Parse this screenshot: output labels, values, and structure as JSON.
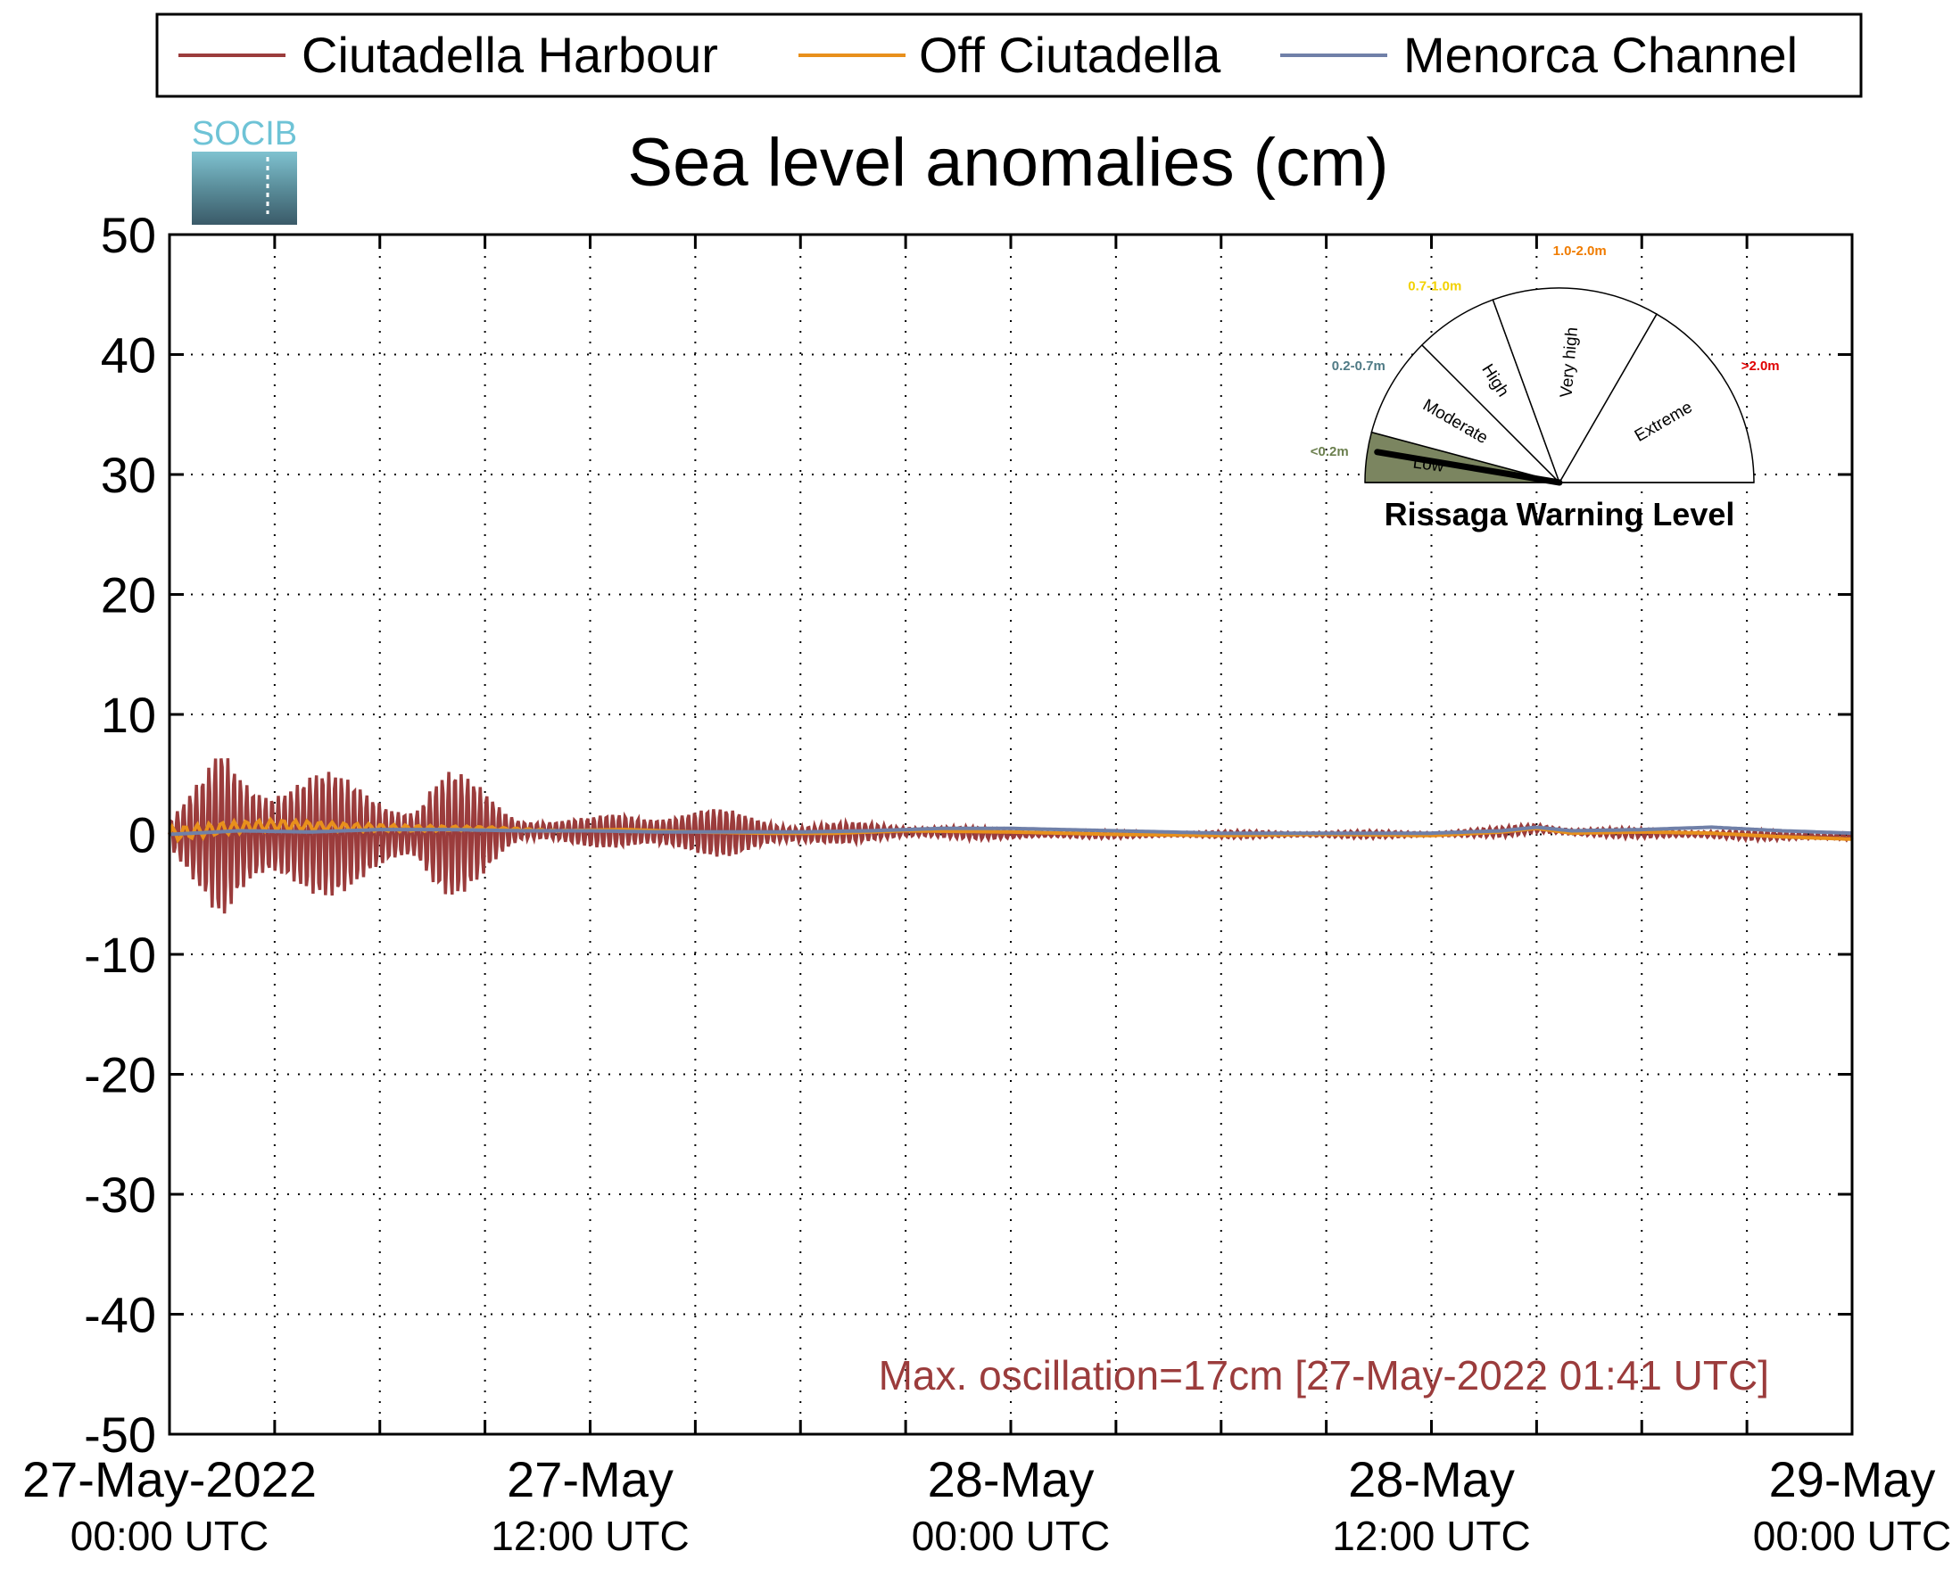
{
  "logo_text": "SOCIB",
  "chart_data": {
    "type": "line",
    "title": "Sea level anomalies (cm)",
    "xlabel": "",
    "ylabel": "",
    "ylim": [
      -50,
      50
    ],
    "yticks": [
      50,
      40,
      30,
      20,
      10,
      0,
      -10,
      -20,
      -30,
      -40,
      -50
    ],
    "ytick_labels": [
      "50",
      "40",
      "30",
      "20",
      "10",
      "0",
      "-10",
      "-20",
      "-30",
      "-40",
      "-50"
    ],
    "xlim_hours": [
      0,
      48
    ],
    "xtick_hours": [
      0,
      3,
      6,
      9,
      12,
      15,
      18,
      21,
      24,
      27,
      30,
      33,
      36,
      39,
      42,
      45,
      48
    ],
    "x_labels": [
      {
        "hour": 0,
        "line1": "27-May-2022",
        "line2": "00:00 UTC"
      },
      {
        "hour": 12,
        "line1": "27-May",
        "line2": "12:00 UTC"
      },
      {
        "hour": 24,
        "line1": "28-May",
        "line2": "00:00 UTC"
      },
      {
        "hour": 36,
        "line1": "28-May",
        "line2": "12:00 UTC"
      },
      {
        "hour": 48,
        "line1": "29-May",
        "line2": "00:00 UTC"
      }
    ],
    "grid": true,
    "legend_position": "top",
    "series": [
      {
        "name": "Ciutadella Harbour",
        "color": "#9b3c3c",
        "hours": [
          0,
          1,
          1.5,
          2,
          3,
          4,
          5,
          6,
          7,
          7.5,
          8,
          9,
          10,
          11,
          12,
          13,
          14,
          15,
          16,
          17,
          18,
          20,
          22,
          24,
          27,
          30,
          33,
          36,
          38,
          39,
          40,
          42,
          44,
          46,
          48
        ],
        "amplitude": [
          1.5,
          5,
          8,
          7,
          6,
          5.5,
          5,
          4.5,
          3,
          5,
          5.5,
          4,
          1.5,
          1,
          1.2,
          1.8,
          2,
          2,
          2,
          1.5,
          1,
          0.8,
          0.6,
          0.4,
          0.3,
          0.3,
          0.3,
          0.3,
          0.4,
          0.5,
          0.4,
          0.4,
          0.4,
          0.4,
          0.4
        ],
        "mean": [
          0,
          0,
          0,
          0,
          0,
          0,
          0,
          0,
          0,
          0,
          0,
          0.2,
          0.3,
          0.3,
          0.2,
          0.3,
          0.2,
          0.2,
          0.1,
          0.1,
          0,
          0.2,
          0.2,
          0,
          0,
          0,
          0,
          0,
          0.2,
          0.5,
          0.2,
          0.1,
          0,
          -0.1,
          -0.2
        ]
      },
      {
        "name": "Off Ciutadella",
        "color": "#e8901c",
        "hours": [
          0,
          1.5,
          3,
          5,
          7,
          9,
          11,
          13,
          15,
          17,
          19,
          21,
          24,
          27,
          30,
          33,
          36,
          38,
          39,
          40,
          42,
          44,
          46,
          48
        ],
        "values": [
          0,
          0.5,
          0.8,
          0.6,
          0.5,
          0.5,
          0.3,
          0.4,
          0.2,
          0.1,
          0.1,
          0.3,
          0.2,
          0,
          -0.1,
          0,
          -0.1,
          0.2,
          0.5,
          0.1,
          0.2,
          0.1,
          -0.2,
          -0.4
        ]
      },
      {
        "name": "Menorca Channel",
        "color": "#7080a8",
        "hours": [
          0,
          2,
          4,
          6,
          8,
          10,
          12,
          14,
          16,
          18,
          20,
          22,
          24,
          27,
          30,
          33,
          36,
          38,
          39,
          40,
          42,
          44,
          46,
          48
        ],
        "values": [
          0,
          0.3,
          0.2,
          0.4,
          0.4,
          0.3,
          0.3,
          0.2,
          0.2,
          0.2,
          0.3,
          0.5,
          0.5,
          0.3,
          0.1,
          0.1,
          0.1,
          0.3,
          0.6,
          0.3,
          0.4,
          0.6,
          0.3,
          0.1
        ]
      }
    ],
    "annotation": "Max. oscillation=17cm [27-May-2022 01:41 UTC]",
    "annotation_color": "#9b3c3c"
  },
  "gauge": {
    "title": "Rissaga Warning Level",
    "current_level": "Low",
    "sectors": [
      {
        "label": "Low",
        "range": "<0.2m",
        "range_color": "#6b7f4e",
        "fill": "#7b8560",
        "active": true
      },
      {
        "label": "Moderate",
        "range": "0.2-0.7m",
        "range_color": "#4f7a85",
        "fill": "#ffffff",
        "active": false
      },
      {
        "label": "High",
        "range": "0.7-1.0m",
        "range_color": "#f2d100",
        "fill": "#ffffff",
        "active": false
      },
      {
        "label": "Very high",
        "range": "1.0-2.0m",
        "range_color": "#f07c00",
        "fill": "#ffffff",
        "active": false
      },
      {
        "label": "Extreme",
        "range": ">2.0m",
        "range_color": "#e00000",
        "fill": "#ffffff",
        "active": false
      }
    ]
  }
}
